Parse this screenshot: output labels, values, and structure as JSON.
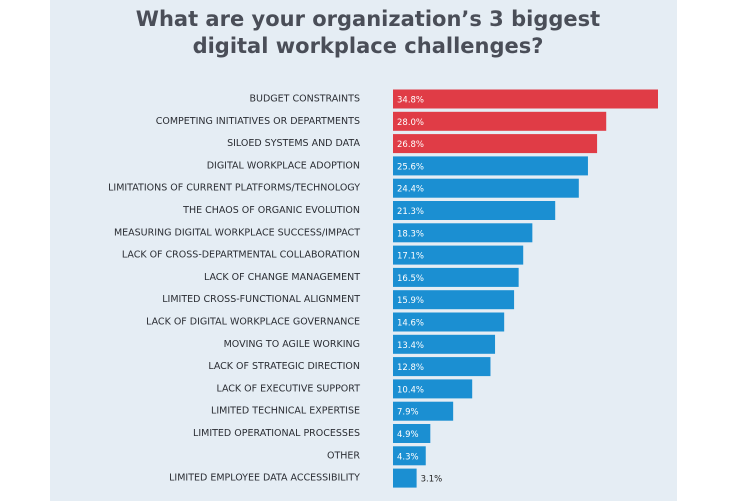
{
  "chart_data": {
    "type": "bar",
    "orientation": "horizontal",
    "title": [
      "What are your organization’s 3 biggest",
      "digital workplace challenges?"
    ],
    "categories": [
      "BUDGET CONSTRAINTS",
      "COMPETING INITIATIVES OR DEPARTMENTS",
      "SILOED SYSTEMS AND DATA",
      "DIGITAL WORKPLACE ADOPTION",
      "LIMITATIONS OF CURRENT PLATFORMS/TECHNOLOGY",
      "THE CHAOS OF ORGANIC EVOLUTION",
      "MEASURING DIGITAL WORKPLACE SUCCESS/IMPACT",
      "LACK OF CROSS-DEPARTMENTAL COLLABORATION",
      "LACK OF CHANGE MANAGEMENT",
      "LIMITED CROSS-FUNCTIONAL ALIGNMENT",
      "LACK OF DIGITAL WORKPLACE GOVERNANCE",
      "MOVING TO AGILE WORKING",
      "LACK OF STRATEGIC DIRECTION",
      "LACK OF EXECUTIVE SUPPORT",
      "LIMITED TECHNICAL EXPERTISE",
      "LIMITED OPERATIONAL PROCESSES",
      "OTHER",
      "LIMITED EMPLOYEE DATA ACCESSIBILITY"
    ],
    "values": [
      34.8,
      28.0,
      26.8,
      25.6,
      24.4,
      21.3,
      18.3,
      17.1,
      16.5,
      15.9,
      14.6,
      13.4,
      12.8,
      10.4,
      7.9,
      4.9,
      4.3,
      3.1
    ],
    "value_labels": [
      "34.8%",
      "28.0%",
      "26.8%",
      "25.6%",
      "24.4%",
      "21.3%",
      "18.3%",
      "17.1%",
      "16.5%",
      "15.9%",
      "14.6%",
      "13.4%",
      "12.8%",
      "10.4%",
      "7.9%",
      "4.9%",
      "4.3%",
      "3.1%"
    ],
    "colors": [
      "#e03c46",
      "#e03c46",
      "#e03c46",
      "#1b8fd2",
      "#1b8fd2",
      "#1b8fd2",
      "#1b8fd2",
      "#1b8fd2",
      "#1b8fd2",
      "#1b8fd2",
      "#1b8fd2",
      "#1b8fd2",
      "#1b8fd2",
      "#1b8fd2",
      "#1b8fd2",
      "#1b8fd2",
      "#1b8fd2",
      "#1b8fd2"
    ]
  }
}
